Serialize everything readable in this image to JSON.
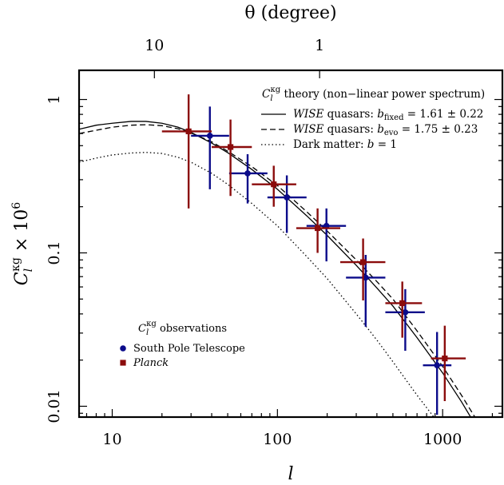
{
  "chart_data": {
    "type": "scatter",
    "xscale": "log",
    "yscale": "log",
    "xlim": [
      6.3,
      2300
    ],
    "ylim": [
      0.0085,
      1.55
    ],
    "xlabel": "l",
    "ylabel_main": "C",
    "ylabel_sub": "l",
    "ylabel_sup": "κg",
    "ylabel_suffix": " × 10",
    "ylabel_exp": "6",
    "top_axis": {
      "title": "θ (degree)",
      "ticks": [
        {
          "l": 18,
          "label": "10"
        },
        {
          "l": 180,
          "label": "1"
        }
      ]
    },
    "xticks": [
      {
        "value": 10,
        "label": "10"
      },
      {
        "value": 100,
        "label": "100"
      },
      {
        "value": 1000,
        "label": "1000"
      }
    ],
    "yticks": [
      {
        "value": 1,
        "label": "1"
      },
      {
        "value": 0.1,
        "label": "0.1"
      },
      {
        "value": 0.01,
        "label": "0.01"
      }
    ],
    "theory_legend": {
      "title_pre": "C",
      "title_sub": "l",
      "title_sup": "κg",
      "title_post": " theory (non−linear power spectrum)",
      "entries": [
        {
          "style": "solid",
          "italic": "WISE",
          "text": " quasars: ",
          "b": "b",
          "b_sub": "fixed",
          "value": " = 1.61 ± 0.22"
        },
        {
          "style": "dashed",
          "italic": "WISE",
          "text": " quasars: ",
          "b": "b",
          "b_sub": "evo",
          "value": " = 1.75 ± 0.23"
        },
        {
          "style": "dotted",
          "italic": "",
          "text": "Dark matter: ",
          "b": "b",
          "b_sub": "",
          "value": " = 1"
        }
      ]
    },
    "obs_legend": {
      "title_pre": "C",
      "title_sub": "l",
      "title_sup": "κg",
      "title_post": " observations",
      "entries": [
        {
          "marker": "circle",
          "label": "South Pole Telescope",
          "italic": false
        },
        {
          "marker": "square",
          "label": "Planck",
          "italic": true
        }
      ]
    },
    "colors": {
      "spt": "#0b0b8a",
      "planck": "#8b0c0c",
      "theory": "#000000"
    },
    "series": [
      {
        "name": "South Pole Telescope",
        "marker": "circle",
        "points": [
          {
            "x": 39,
            "y": 0.58,
            "xlo": 30,
            "xhi": 51,
            "ylo": 0.26,
            "yhi": 0.9
          },
          {
            "x": 66,
            "y": 0.33,
            "xlo": 51,
            "xhi": 87,
            "ylo": 0.21,
            "yhi": 0.44
          },
          {
            "x": 114,
            "y": 0.23,
            "xlo": 87,
            "xhi": 150,
            "ylo": 0.135,
            "yhi": 0.32
          },
          {
            "x": 198,
            "y": 0.15,
            "xlo": 150,
            "xhi": 260,
            "ylo": 0.088,
            "yhi": 0.195
          },
          {
            "x": 342,
            "y": 0.069,
            "xlo": 260,
            "xhi": 450,
            "ylo": 0.033,
            "yhi": 0.097
          },
          {
            "x": 594,
            "y": 0.041,
            "xlo": 450,
            "xhi": 780,
            "ylo": 0.023,
            "yhi": 0.058
          },
          {
            "x": 925,
            "y": 0.0185,
            "xlo": 760,
            "xhi": 1130,
            "ylo": 0.0088,
            "yhi": 0.0305
          }
        ]
      },
      {
        "name": "Planck",
        "marker": "square",
        "points": [
          {
            "x": 29,
            "y": 0.62,
            "xlo": 20,
            "xhi": 40,
            "ylo": 0.195,
            "yhi": 1.08
          },
          {
            "x": 52,
            "y": 0.49,
            "xlo": 40,
            "xhi": 70,
            "ylo": 0.235,
            "yhi": 0.74
          },
          {
            "x": 95,
            "y": 0.28,
            "xlo": 70,
            "xhi": 130,
            "ylo": 0.2,
            "yhi": 0.37
          },
          {
            "x": 175,
            "y": 0.145,
            "xlo": 130,
            "xhi": 240,
            "ylo": 0.1,
            "yhi": 0.195
          },
          {
            "x": 330,
            "y": 0.087,
            "xlo": 240,
            "xhi": 450,
            "ylo": 0.049,
            "yhi": 0.124
          },
          {
            "x": 570,
            "y": 0.047,
            "xlo": 450,
            "xhi": 750,
            "ylo": 0.028,
            "yhi": 0.065
          },
          {
            "x": 1030,
            "y": 0.0205,
            "xlo": 850,
            "xhi": 1380,
            "ylo": 0.0108,
            "yhi": 0.0335
          }
        ]
      }
    ],
    "theory_curves": [
      {
        "name": "WISE quasars b_fixed",
        "style": "solid",
        "x": [
          6.3,
          8,
          10,
          13,
          16,
          20,
          25,
          30,
          40,
          50,
          70,
          100,
          150,
          200,
          300,
          400,
          500,
          700,
          1000,
          1300,
          1550
        ],
        "y": [
          0.64,
          0.68,
          0.7,
          0.72,
          0.72,
          0.7,
          0.66,
          0.61,
          0.52,
          0.45,
          0.35,
          0.26,
          0.175,
          0.13,
          0.083,
          0.059,
          0.045,
          0.028,
          0.0165,
          0.0107,
          0.0078
        ]
      },
      {
        "name": "WISE quasars b_evo",
        "style": "dashed",
        "x": [
          6.3,
          8,
          10,
          13,
          16,
          20,
          25,
          30,
          40,
          50,
          70,
          100,
          150,
          200,
          300,
          400,
          500,
          700,
          1000,
          1300,
          1600
        ],
        "y": [
          0.6,
          0.63,
          0.66,
          0.68,
          0.685,
          0.675,
          0.645,
          0.605,
          0.53,
          0.46,
          0.365,
          0.275,
          0.186,
          0.139,
          0.09,
          0.065,
          0.05,
          0.031,
          0.0182,
          0.0118,
          0.0082
        ]
      },
      {
        "name": "Dark matter b=1",
        "style": "dotted",
        "x": [
          6.3,
          8,
          10,
          13,
          16,
          20,
          25,
          30,
          40,
          50,
          70,
          100,
          150,
          200,
          300,
          400,
          500,
          700,
          900,
          950
        ],
        "y": [
          0.39,
          0.415,
          0.435,
          0.448,
          0.452,
          0.445,
          0.42,
          0.39,
          0.33,
          0.28,
          0.21,
          0.15,
          0.095,
          0.068,
          0.04,
          0.027,
          0.0195,
          0.0118,
          0.0083,
          0.0077
        ]
      }
    ]
  }
}
